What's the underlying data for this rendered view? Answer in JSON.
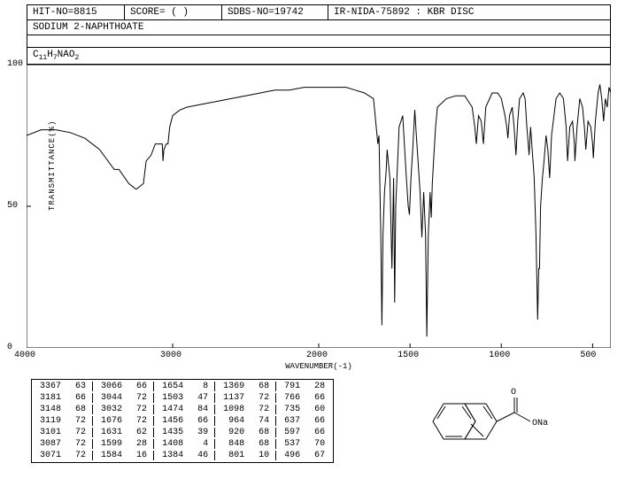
{
  "header": {
    "hit_no": "HIT-NO=8815",
    "score": "SCORE=  (  )",
    "sdbs_no": "SDBS-NO=19742",
    "ir_info": "IR-NIDA-75892 : KBR DISC",
    "compound": "SODIUM 2-NAPHTHOATE",
    "formula_prefix": "C",
    "formula_c": "11",
    "formula_mid": "H",
    "formula_h": "7",
    "formula_suffix": "NAO",
    "formula_o": "2"
  },
  "chart": {
    "ylabel": "TRANSMITTANCE(%)",
    "xlabel": "WAVENUMBER(-1)",
    "ylim": [
      0,
      100
    ],
    "xlim": [
      4000,
      400
    ],
    "yticks": [
      0,
      50,
      100
    ],
    "xticks": [
      4000,
      3000,
      2000,
      1500,
      1000,
      500
    ],
    "line_color": "#000000",
    "background_color": "#ffffff",
    "border_color": "#000000",
    "points": [
      [
        4000,
        75
      ],
      [
        3900,
        77
      ],
      [
        3800,
        77
      ],
      [
        3700,
        76
      ],
      [
        3600,
        74
      ],
      [
        3500,
        70
      ],
      [
        3400,
        63
      ],
      [
        3367,
        63
      ],
      [
        3300,
        58
      ],
      [
        3250,
        56
      ],
      [
        3200,
        58
      ],
      [
        3181,
        66
      ],
      [
        3148,
        68
      ],
      [
        3119,
        72
      ],
      [
        3101,
        72
      ],
      [
        3087,
        72
      ],
      [
        3071,
        72
      ],
      [
        3066,
        66
      ],
      [
        3060,
        70
      ],
      [
        3044,
        72
      ],
      [
        3032,
        72
      ],
      [
        3020,
        78
      ],
      [
        3000,
        82
      ],
      [
        2950,
        84
      ],
      [
        2900,
        85
      ],
      [
        2800,
        86
      ],
      [
        2700,
        87
      ],
      [
        2600,
        88
      ],
      [
        2500,
        89
      ],
      [
        2400,
        90
      ],
      [
        2300,
        91
      ],
      [
        2200,
        91
      ],
      [
        2100,
        92
      ],
      [
        2000,
        92
      ],
      [
        1950,
        92
      ],
      [
        1900,
        92
      ],
      [
        1850,
        92
      ],
      [
        1800,
        91
      ],
      [
        1750,
        90
      ],
      [
        1700,
        88
      ],
      [
        1676,
        72
      ],
      [
        1670,
        75
      ],
      [
        1660,
        40
      ],
      [
        1654,
        8
      ],
      [
        1648,
        40
      ],
      [
        1640,
        55
      ],
      [
        1631,
        62
      ],
      [
        1625,
        70
      ],
      [
        1610,
        60
      ],
      [
        1599,
        28
      ],
      [
        1590,
        60
      ],
      [
        1584,
        16
      ],
      [
        1578,
        50
      ],
      [
        1560,
        78
      ],
      [
        1540,
        82
      ],
      [
        1520,
        60
      ],
      [
        1510,
        50
      ],
      [
        1503,
        47
      ],
      [
        1495,
        60
      ],
      [
        1485,
        70
      ],
      [
        1474,
        84
      ],
      [
        1465,
        75
      ],
      [
        1456,
        66
      ],
      [
        1445,
        55
      ],
      [
        1435,
        39
      ],
      [
        1425,
        55
      ],
      [
        1415,
        40
      ],
      [
        1408,
        4
      ],
      [
        1400,
        40
      ],
      [
        1390,
        55
      ],
      [
        1384,
        46
      ],
      [
        1378,
        58
      ],
      [
        1369,
        68
      ],
      [
        1360,
        78
      ],
      [
        1350,
        85
      ],
      [
        1300,
        88
      ],
      [
        1250,
        89
      ],
      [
        1200,
        89
      ],
      [
        1160,
        85
      ],
      [
        1145,
        78
      ],
      [
        1137,
        72
      ],
      [
        1125,
        82
      ],
      [
        1110,
        80
      ],
      [
        1098,
        72
      ],
      [
        1085,
        85
      ],
      [
        1050,
        90
      ],
      [
        1020,
        90
      ],
      [
        1000,
        88
      ],
      [
        980,
        82
      ],
      [
        970,
        78
      ],
      [
        964,
        74
      ],
      [
        955,
        82
      ],
      [
        940,
        85
      ],
      [
        930,
        78
      ],
      [
        920,
        68
      ],
      [
        910,
        80
      ],
      [
        900,
        88
      ],
      [
        880,
        90
      ],
      [
        870,
        88
      ],
      [
        860,
        78
      ],
      [
        850,
        70
      ],
      [
        848,
        68
      ],
      [
        840,
        78
      ],
      [
        820,
        60
      ],
      [
        810,
        40
      ],
      [
        801,
        10
      ],
      [
        795,
        28
      ],
      [
        791,
        28
      ],
      [
        785,
        50
      ],
      [
        775,
        60
      ],
      [
        766,
        66
      ],
      [
        755,
        75
      ],
      [
        745,
        70
      ],
      [
        735,
        60
      ],
      [
        725,
        75
      ],
      [
        700,
        88
      ],
      [
        680,
        90
      ],
      [
        660,
        88
      ],
      [
        645,
        78
      ],
      [
        637,
        66
      ],
      [
        625,
        78
      ],
      [
        610,
        80
      ],
      [
        600,
        72
      ],
      [
        597,
        66
      ],
      [
        585,
        78
      ],
      [
        570,
        88
      ],
      [
        555,
        85
      ],
      [
        545,
        78
      ],
      [
        537,
        70
      ],
      [
        525,
        80
      ],
      [
        510,
        78
      ],
      [
        500,
        72
      ],
      [
        496,
        67
      ],
      [
        485,
        80
      ],
      [
        470,
        90
      ],
      [
        460,
        93
      ],
      [
        450,
        88
      ],
      [
        440,
        80
      ],
      [
        430,
        88
      ],
      [
        420,
        85
      ],
      [
        410,
        92
      ],
      [
        400,
        90
      ]
    ]
  },
  "peaks": {
    "cols": [
      [
        [
          3367,
          63
        ],
        [
          3181,
          66
        ],
        [
          3148,
          68
        ],
        [
          3119,
          72
        ],
        [
          3101,
          72
        ],
        [
          3087,
          72
        ],
        [
          3071,
          72
        ]
      ],
      [
        [
          3066,
          66
        ],
        [
          3044,
          72
        ],
        [
          3032,
          72
        ],
        [
          1676,
          72
        ],
        [
          1631,
          62
        ],
        [
          1599,
          28
        ],
        [
          1584,
          16
        ]
      ],
      [
        [
          1654,
          8
        ],
        [
          1503,
          47
        ],
        [
          1474,
          84
        ],
        [
          1456,
          66
        ],
        [
          1435,
          39
        ],
        [
          1408,
          4
        ],
        [
          1384,
          46
        ]
      ],
      [
        [
          1369,
          68
        ],
        [
          1137,
          72
        ],
        [
          1098,
          72
        ],
        [
          964,
          74
        ],
        [
          920,
          68
        ],
        [
          848,
          68
        ],
        [
          801,
          10
        ]
      ],
      [
        [
          791,
          28
        ],
        [
          766,
          66
        ],
        [
          735,
          60
        ],
        [
          637,
          66
        ],
        [
          597,
          66
        ],
        [
          537,
          70
        ],
        [
          496,
          67
        ]
      ]
    ]
  },
  "molecule": {
    "label_ona": "ONa",
    "label_o": "O"
  }
}
